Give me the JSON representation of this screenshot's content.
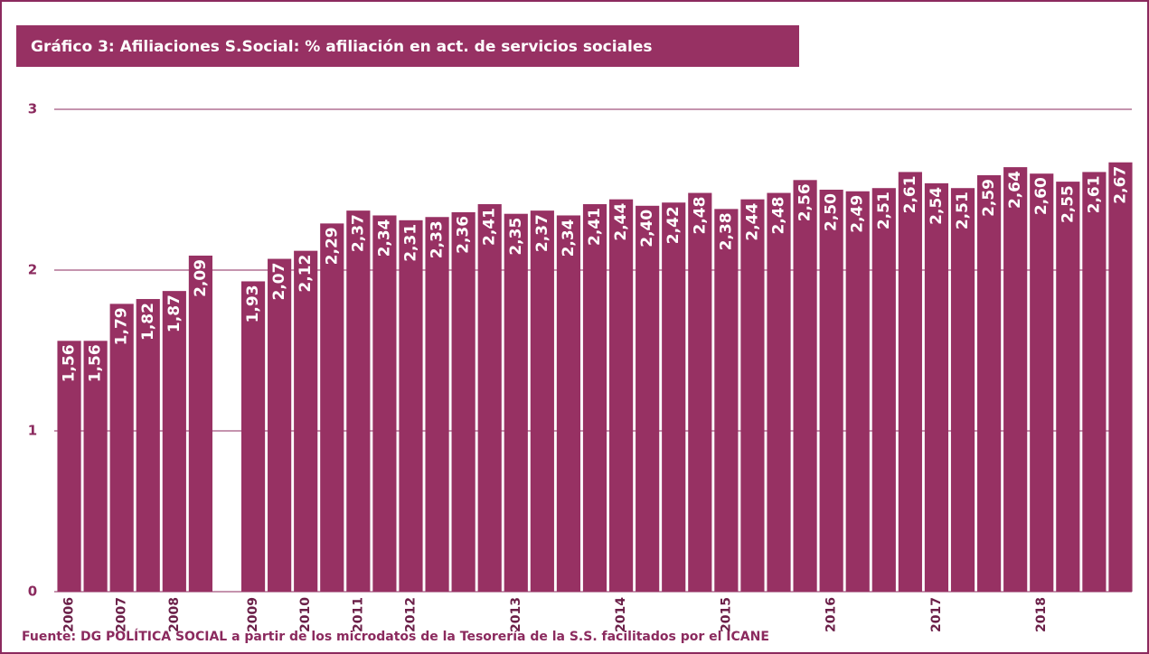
{
  "chart_data": {
    "type": "bar",
    "title": "Gráfico 3: Afiliaciones S.Social: % afiliación en act. de servicios sociales",
    "source": "Fuente: DG POLÍTICA SOCIAL a partir de los microdatos de la Tesorería de la S.S. facilitados por el ICANE",
    "categories": [
      "2006",
      null,
      "2007",
      null,
      "2008",
      null,
      null,
      "2009",
      null,
      "2010",
      null,
      "2011",
      null,
      "2012",
      null,
      null,
      null,
      "2013",
      null,
      null,
      null,
      "2014",
      null,
      null,
      null,
      "2015",
      null,
      null,
      null,
      "2016",
      null,
      null,
      null,
      "2017",
      null,
      null,
      null,
      "2018",
      null,
      null,
      null
    ],
    "values": [
      1.56,
      1.56,
      1.79,
      1.82,
      1.87,
      2.09,
      null,
      1.93,
      2.07,
      2.12,
      2.29,
      2.37,
      2.34,
      2.31,
      2.33,
      2.36,
      2.41,
      2.35,
      2.37,
      2.34,
      2.41,
      2.44,
      2.4,
      2.42,
      2.48,
      2.38,
      2.44,
      2.48,
      2.56,
      2.5,
      2.49,
      2.51,
      2.61,
      2.54,
      2.51,
      2.59,
      2.64,
      2.6,
      2.55,
      2.61,
      2.67
    ],
    "value_labels": [
      "1,56",
      "1,56",
      "1,79",
      "1,82",
      "1,87",
      "2,09",
      null,
      "1,93",
      "2,07",
      "2,12",
      "2,29",
      "2,37",
      "2,34",
      "2,31",
      "2,33",
      "2,36",
      "2,41",
      "2,35",
      "2,37",
      "2,34",
      "2,41",
      "2,44",
      "2,40",
      "2,42",
      "2,48",
      "2,38",
      "2,44",
      "2,48",
      "2,56",
      "2,50",
      "2,49",
      "2,51",
      "2,61",
      "2,54",
      "2,51",
      "2,59",
      "2,64",
      "2,60",
      "2,55",
      "2,61",
      "2,67"
    ],
    "color": "#973163",
    "ylim": [
      0,
      3
    ],
    "yticks": [
      0,
      1,
      2,
      3
    ],
    "grid": true
  }
}
